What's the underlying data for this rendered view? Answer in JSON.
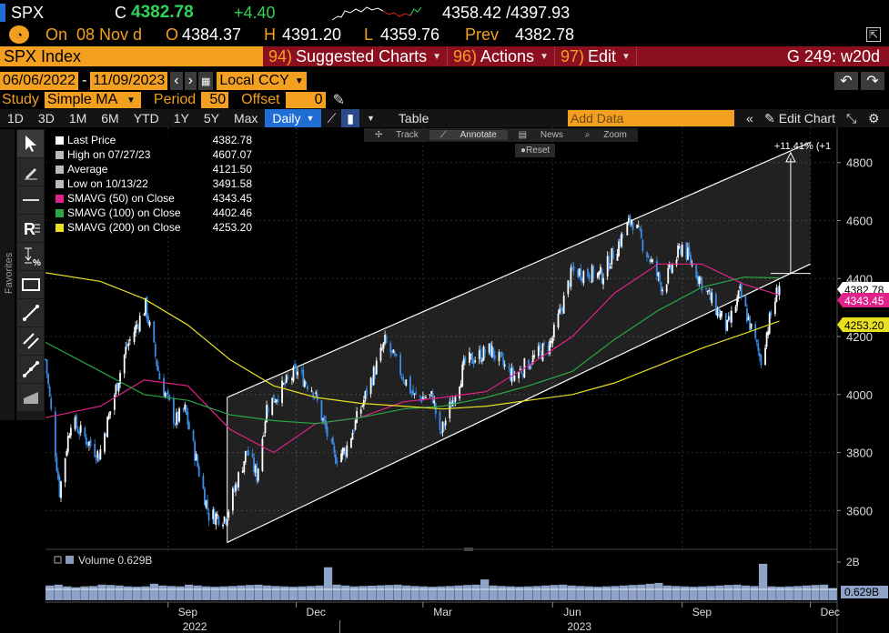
{
  "quote": {
    "ticker": "SPX",
    "close_label": "C",
    "last": "4382.78",
    "change": "+4.40",
    "range": "4358.42 /4397.93",
    "on_label": "On",
    "date": "08 Nov d",
    "open_label": "O",
    "open": "4384.37",
    "high_label": "H",
    "high": "4391.20",
    "low_label": "L",
    "low": "4359.76",
    "prev_label": "Prev",
    "prev": "4382.78"
  },
  "header": {
    "security": "SPX Index",
    "suggested_num": "94)",
    "suggested": "Suggested Charts",
    "actions_num": "96)",
    "actions": "Actions",
    "edit_num": "97)",
    "edit": "Edit",
    "gcode": "G 249: w20d"
  },
  "dates": {
    "start": "06/06/2022",
    "sep": "-",
    "end": "11/09/2023",
    "currency": "Local CCY"
  },
  "study": {
    "label": "Study",
    "value": "Simple MA",
    "period_label": "Period",
    "period": "50",
    "offset_label": "Offset",
    "offset": "0"
  },
  "toolbar": {
    "periods": [
      "1D",
      "3D",
      "1M",
      "6M",
      "YTD",
      "1Y",
      "5Y",
      "Max"
    ],
    "frequency": "Daily",
    "table": "Table",
    "add_data_placeholder": "Add Data",
    "edit_chart": "Edit Chart"
  },
  "chart_controls": {
    "track": "Track",
    "annotate": "Annotate",
    "news": "News",
    "zoom": "Zoom",
    "reset": "Reset"
  },
  "favorites_label": "Favorites",
  "legend": [
    {
      "name": "Last Price",
      "value": "4382.78",
      "color": "#ffffff"
    },
    {
      "name": "High on 07/27/23",
      "value": "4607.07",
      "color": "#bbbbbb"
    },
    {
      "name": "Average",
      "value": "4121.50",
      "color": "#bbbbbb"
    },
    {
      "name": "Low on 10/13/22",
      "value": "3491.58",
      "color": "#bbbbbb"
    },
    {
      "name": "SMAVG (50)  on Close",
      "value": "4343.45",
      "color": "#e0218a"
    },
    {
      "name": "SMAVG (100)  on Close",
      "value": "4402.46",
      "color": "#27a844"
    },
    {
      "name": "SMAVG (200)  on Close",
      "value": "4253.20",
      "color": "#e8e020"
    }
  ],
  "chart_data": {
    "type": "line",
    "title": "",
    "y_ticks": [
      3600,
      3800,
      4000,
      4200,
      4400,
      4600,
      4800
    ],
    "ylim": [
      3460,
      4890
    ],
    "x_month_labels": [
      "Sep",
      "Dec",
      "Mar",
      "Jun",
      "Sep",
      "Dec"
    ],
    "x_year_labels": [
      "2022",
      "2023"
    ],
    "series": [
      {
        "name": "Last Price",
        "color": "#ffffff",
        "x": [
          "2022-06-06",
          "2022-06-16",
          "2022-06-24",
          "2022-07-14",
          "2022-08-02",
          "2022-08-16",
          "2022-08-26",
          "2022-09-06",
          "2022-09-13",
          "2022-09-30",
          "2022-10-12",
          "2022-10-27",
          "2022-11-03",
          "2022-11-10",
          "2022-12-01",
          "2022-12-13",
          "2022-12-28",
          "2023-01-05",
          "2023-02-02",
          "2023-02-23",
          "2023-03-08",
          "2023-03-13",
          "2023-03-31",
          "2023-04-18",
          "2023-05-04",
          "2023-05-31",
          "2023-06-15",
          "2023-07-06",
          "2023-07-27",
          "2023-08-18",
          "2023-09-01",
          "2023-09-21",
          "2023-10-03",
          "2023-10-12",
          "2023-10-27",
          "2023-11-01",
          "2023-11-09"
        ],
        "values": [
          4121,
          3667,
          3912,
          3790,
          4155,
          4305,
          4058,
          3908,
          3946,
          3585,
          3577,
          3807,
          3720,
          3956,
          4080,
          4019,
          3783,
          3808,
          4180,
          3991,
          3992,
          3855,
          4109,
          4154,
          4061,
          4180,
          4425,
          4411,
          4607,
          4370,
          4515,
          4330,
          4229,
          4349,
          4117,
          4237,
          4383
        ]
      },
      {
        "name": "SMAVG (50) on Close",
        "color": "#e0218a",
        "x": [
          "2022-06-06",
          "2022-07-15",
          "2022-08-15",
          "2022-09-15",
          "2022-10-15",
          "2022-11-15",
          "2022-12-15",
          "2023-01-15",
          "2023-02-15",
          "2023-03-15",
          "2023-04-15",
          "2023-05-15",
          "2023-06-15",
          "2023-07-15",
          "2023-08-15",
          "2023-09-15",
          "2023-10-15",
          "2023-11-09"
        ],
        "values": [
          3920,
          3960,
          4050,
          4030,
          3880,
          3800,
          3900,
          3920,
          3975,
          3990,
          4010,
          4100,
          4200,
          4350,
          4450,
          4450,
          4380,
          4343
        ]
      },
      {
        "name": "SMAVG (100) on Close",
        "color": "#27a844",
        "x": [
          "2022-06-06",
          "2022-07-15",
          "2022-08-15",
          "2022-09-15",
          "2022-10-15",
          "2022-11-15",
          "2022-12-15",
          "2023-01-15",
          "2023-02-15",
          "2023-03-15",
          "2023-04-15",
          "2023-05-15",
          "2023-06-15",
          "2023-07-15",
          "2023-08-15",
          "2023-09-15",
          "2023-10-15",
          "2023-11-09"
        ],
        "values": [
          4180,
          4080,
          4000,
          3980,
          3930,
          3910,
          3900,
          3920,
          3950,
          3960,
          3990,
          4030,
          4080,
          4190,
          4290,
          4370,
          4405,
          4402
        ]
      },
      {
        "name": "SMAVG (200) on Close",
        "color": "#e8e020",
        "x": [
          "2022-06-06",
          "2022-07-15",
          "2022-08-15",
          "2022-09-15",
          "2022-10-15",
          "2022-11-15",
          "2022-12-15",
          "2023-01-15",
          "2023-02-15",
          "2023-03-15",
          "2023-04-15",
          "2023-05-15",
          "2023-06-15",
          "2023-07-15",
          "2023-08-15",
          "2023-09-15",
          "2023-10-15",
          "2023-11-09"
        ],
        "values": [
          4420,
          4390,
          4330,
          4240,
          4120,
          4030,
          3990,
          3970,
          3960,
          3950,
          3960,
          3980,
          4000,
          4040,
          4100,
          4160,
          4210,
          4253
        ]
      }
    ],
    "channel": {
      "upper": [
        {
          "x": "2022-10-13",
          "y": 3990
        },
        {
          "x": "2023-12-01",
          "y": 4870
        }
      ],
      "lower": [
        {
          "x": "2022-10-13",
          "y": 3490
        },
        {
          "x": "2023-12-01",
          "y": 4450
        }
      ],
      "annotation": "+11.41% (+1"
    },
    "price_labels": [
      {
        "value": "4382.78",
        "bg": "#ffffff",
        "fg": "#000000"
      },
      {
        "value": "4343.45",
        "bg": "#e0218a",
        "fg": "#ffffff"
      },
      {
        "value": "4253.20",
        "bg": "#e8e020",
        "fg": "#000000"
      }
    ],
    "volume": {
      "label": "Volume",
      "value": "0.629B",
      "tick": "2B",
      "avg": "0.629B",
      "values": [
        0.85,
        0.9,
        0.8,
        0.75,
        0.8,
        0.82,
        0.9,
        0.88,
        0.85,
        0.8,
        0.78,
        0.8,
        0.95,
        0.85,
        0.82,
        0.8,
        0.9,
        0.85,
        0.8,
        0.78,
        0.8,
        0.82,
        0.85,
        0.88,
        0.9,
        0.85,
        0.82,
        0.8,
        0.78,
        0.8,
        0.82,
        0.85,
        1.9,
        0.9,
        0.85,
        0.8,
        0.82,
        0.84,
        0.86,
        0.88,
        0.9,
        0.85,
        0.82,
        0.8,
        0.78,
        0.8,
        0.82,
        0.85,
        0.88,
        0.9,
        1.2,
        0.85,
        0.82,
        0.8,
        0.78,
        0.8,
        0.82,
        0.85,
        0.88,
        0.9,
        0.85,
        0.82,
        0.8,
        0.78,
        0.8,
        0.82,
        0.85,
        0.88,
        0.9,
        0.95,
        1.0,
        0.85,
        0.82,
        0.8,
        0.78,
        0.8,
        0.82,
        0.85,
        0.88,
        0.9,
        0.85,
        0.82,
        2.1,
        0.8,
        0.78,
        0.8,
        0.82,
        0.85,
        0.88,
        0.9,
        0.7
      ]
    }
  }
}
